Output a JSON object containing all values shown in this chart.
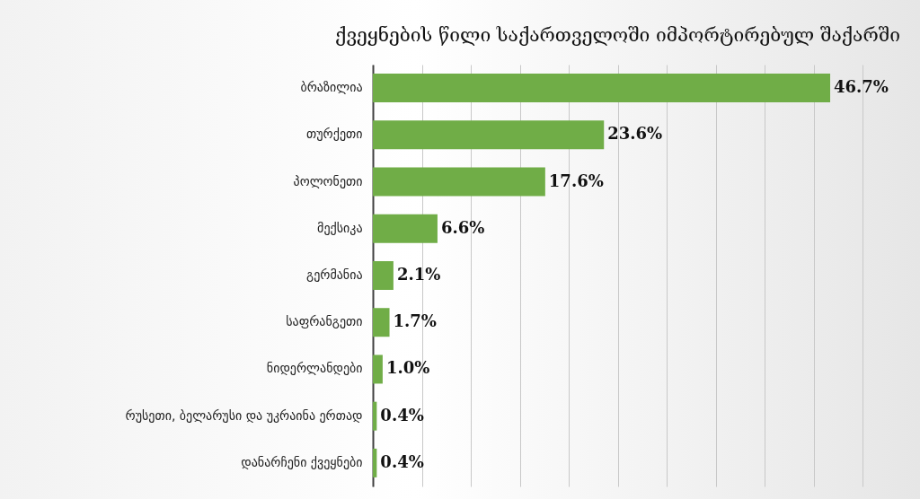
{
  "chart_data": {
    "type": "bar",
    "orientation": "horizontal",
    "title": "ქვეყნების წილი საქართველოში იმპორტირებულ შაქარში",
    "categories": [
      "ბრაზილია",
      "თურქეთი",
      "პოლონეთი",
      "მექსიკა",
      "გერმანია",
      "საფრანგეთი",
      "ნიდერლანდები",
      "რუსეთი, ბელარუსი და უკრაინა ერთად",
      "დანარჩენი ქვეყნები"
    ],
    "values": [
      46.7,
      23.6,
      17.6,
      6.6,
      2.1,
      1.7,
      1.0,
      0.4,
      0.4
    ],
    "value_labels": [
      "46.7%",
      "23.6%",
      "17.6%",
      "6.6%",
      "2.1%",
      "1.7%",
      "1.0%",
      "0.4%",
      "0.4%"
    ],
    "color": "#70ad47",
    "xlim": [
      0,
      50
    ],
    "xticks": [
      {
        "value": 0,
        "label": null
      },
      {
        "value": 5,
        "label": null
      },
      {
        "value": 10,
        "label": null
      },
      {
        "value": 15,
        "label": null
      },
      {
        "value": 20,
        "label": null
      },
      {
        "value": 25,
        "label": null
      },
      {
        "value": 30,
        "label": null
      },
      {
        "value": 35,
        "label": null
      },
      {
        "value": 40,
        "label": null
      },
      {
        "value": 45,
        "label": null
      },
      {
        "value": 50,
        "label": null
      }
    ],
    "grid": "x",
    "tick_labels": "y"
  }
}
